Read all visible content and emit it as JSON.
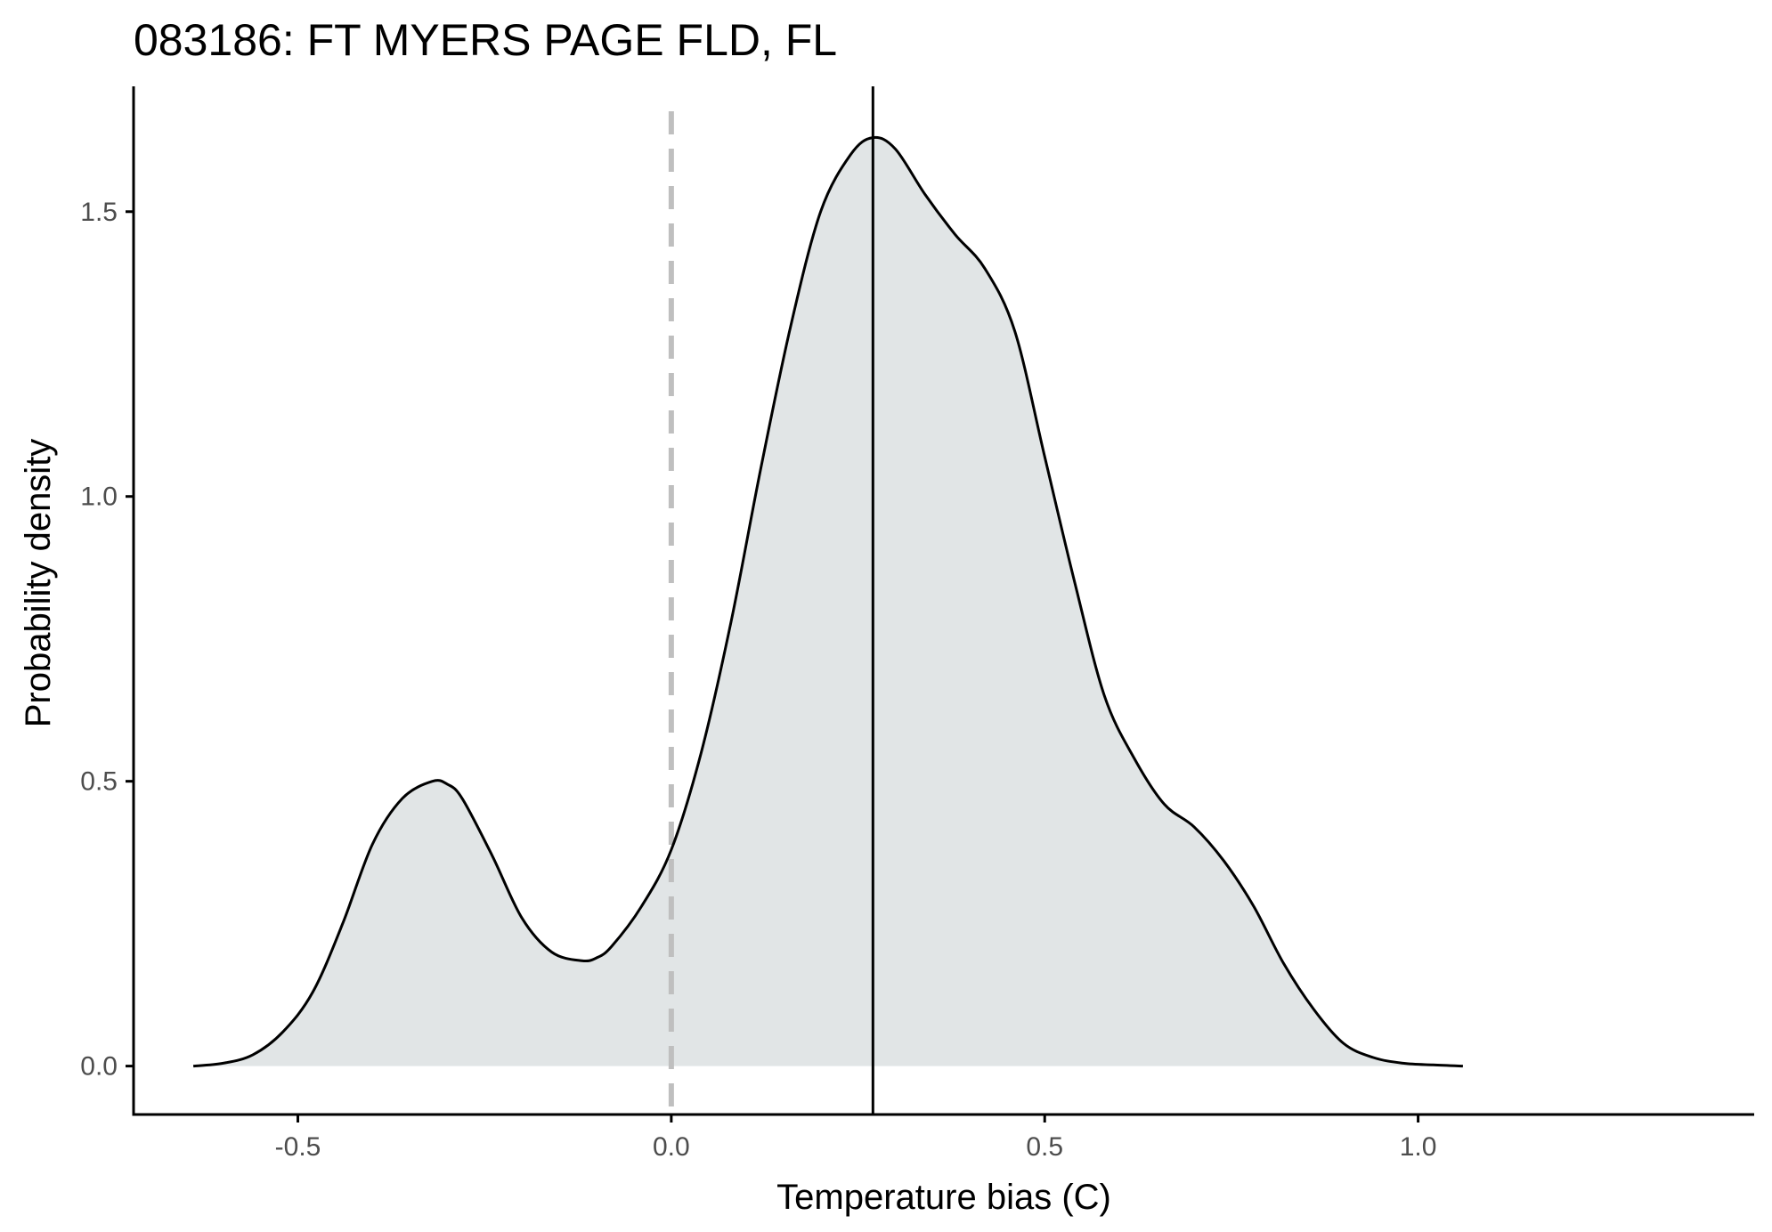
{
  "chart_data": {
    "type": "area",
    "title": "083186: FT MYERS PAGE FLD, FL",
    "xlabel": "Temperature bias (C)",
    "ylabel": "Probability density",
    "xlim": [
      -0.72,
      1.45
    ],
    "ylim": [
      -0.085,
      1.72
    ],
    "grid": false,
    "legend": "none",
    "x_ticks": [
      {
        "value": -0.5,
        "label": "-0.5"
      },
      {
        "value": 0.0,
        "label": "0.0"
      },
      {
        "value": 0.5,
        "label": "0.5"
      },
      {
        "value": 1.0,
        "label": "1.0"
      }
    ],
    "y_ticks": [
      {
        "value": 0.0,
        "label": "0.0"
      },
      {
        "value": 0.5,
        "label": "0.5"
      },
      {
        "value": 1.0,
        "label": "1.0"
      },
      {
        "value": 1.5,
        "label": "1.5"
      }
    ],
    "series": [
      {
        "x": [
          -0.64,
          -0.6,
          -0.56,
          -0.52,
          -0.48,
          -0.44,
          -0.4,
          -0.36,
          -0.32,
          -0.3,
          -0.28,
          -0.24,
          -0.2,
          -0.16,
          -0.12,
          -0.1,
          -0.08,
          -0.04,
          0.0,
          0.04,
          0.08,
          0.12,
          0.16,
          0.2,
          0.24,
          0.27,
          0.3,
          0.34,
          0.38,
          0.42,
          0.46,
          0.5,
          0.54,
          0.58,
          0.62,
          0.66,
          0.7,
          0.74,
          0.78,
          0.82,
          0.86,
          0.9,
          0.94,
          0.98,
          1.02,
          1.06
        ],
        "y": [
          0.0,
          0.005,
          0.02,
          0.06,
          0.13,
          0.25,
          0.39,
          0.47,
          0.5,
          0.495,
          0.47,
          0.37,
          0.26,
          0.2,
          0.185,
          0.19,
          0.21,
          0.28,
          0.38,
          0.55,
          0.78,
          1.05,
          1.3,
          1.5,
          1.6,
          1.63,
          1.61,
          1.53,
          1.46,
          1.4,
          1.29,
          1.07,
          0.85,
          0.65,
          0.54,
          0.46,
          0.42,
          0.36,
          0.28,
          0.18,
          0.1,
          0.04,
          0.015,
          0.005,
          0.002,
          0.0
        ],
        "fill": "#e1e5e6",
        "line": "#000000"
      }
    ],
    "reference_lines": [
      {
        "axis": "x",
        "value": 0.0,
        "style": "dashed",
        "color": "#bfbfbf"
      },
      {
        "axis": "x",
        "value": 0.27,
        "style": "solid",
        "color": "#000000"
      }
    ]
  }
}
